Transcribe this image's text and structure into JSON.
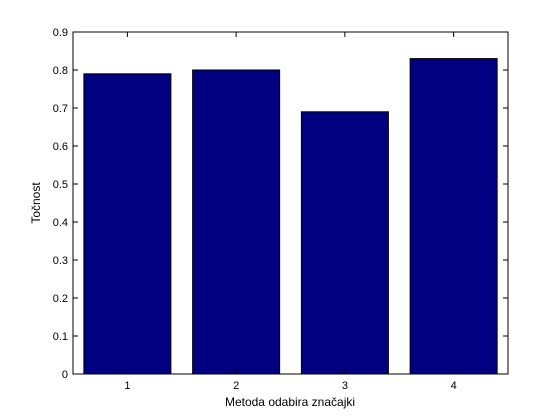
{
  "chart_data": {
    "type": "bar",
    "categories": [
      "1",
      "2",
      "3",
      "4"
    ],
    "values": [
      0.79,
      0.8,
      0.69,
      0.83
    ],
    "title": "",
    "xlabel": "Metoda odabira značajki",
    "ylabel": "Točnost",
    "ylim": [
      0,
      0.9
    ],
    "yticks": [
      0,
      0.1,
      0.2,
      0.3,
      0.4,
      0.5,
      0.6,
      0.7,
      0.8,
      0.9
    ],
    "grid": false,
    "legend": "none",
    "bar_color": "#000080",
    "bar_edge_color": "#000000"
  }
}
